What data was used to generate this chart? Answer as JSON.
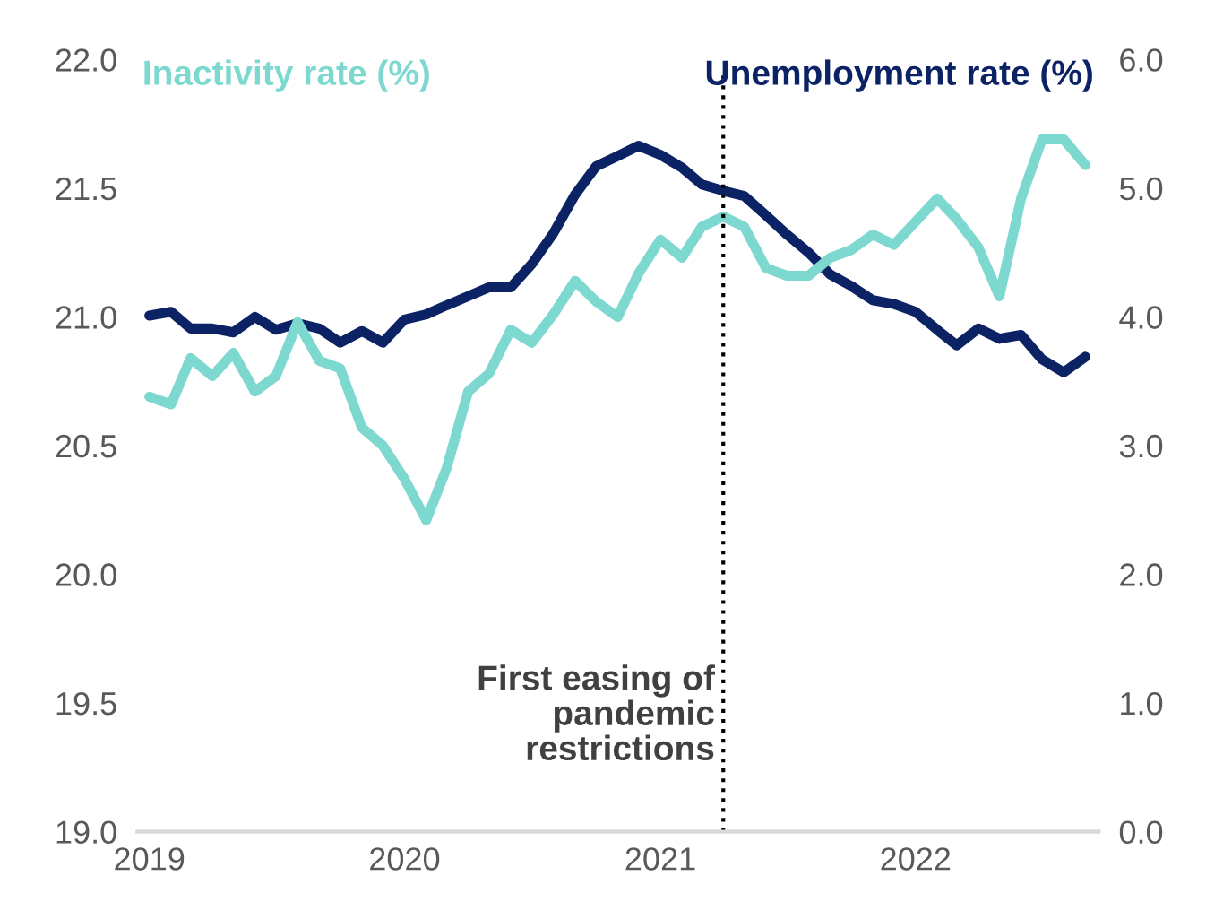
{
  "chart_data": {
    "type": "line",
    "x": [
      "2019-01",
      "2019-02",
      "2019-03",
      "2019-04",
      "2019-05",
      "2019-06",
      "2019-07",
      "2019-08",
      "2019-09",
      "2019-10",
      "2019-11",
      "2019-12",
      "2020-01",
      "2020-02",
      "2020-03",
      "2020-04",
      "2020-05",
      "2020-06",
      "2020-07",
      "2020-08",
      "2020-09",
      "2020-10",
      "2020-11",
      "2020-12",
      "2021-01",
      "2021-02",
      "2021-03",
      "2021-04",
      "2021-05",
      "2021-06",
      "2021-07",
      "2021-08",
      "2021-09",
      "2021-10",
      "2021-11",
      "2021-12",
      "2022-01",
      "2022-02",
      "2022-03",
      "2022-04",
      "2022-05",
      "2022-06",
      "2022-07",
      "2022-08",
      "2022-09"
    ],
    "series": [
      {
        "name": "Inactivity rate (%)",
        "color": "#7dd8cf",
        "values": [
          20.69,
          20.66,
          20.84,
          20.77,
          20.86,
          20.71,
          20.77,
          20.98,
          20.83,
          20.8,
          20.57,
          20.5,
          20.37,
          20.21,
          20.41,
          20.71,
          20.78,
          20.95,
          20.9,
          21.01,
          21.14,
          21.06,
          21.0,
          21.17,
          21.3,
          21.23,
          21.35,
          21.39,
          21.35,
          21.19,
          21.16,
          21.16,
          21.23,
          21.26,
          21.32,
          21.28,
          21.37,
          21.46,
          21.38,
          21.27,
          21.08,
          21.46,
          21.69,
          21.69,
          21.59
        ]
      },
      {
        "name": "Unemployment rate (%)",
        "color": "#0b2265",
        "axis": "y2",
        "values": [
          4.01,
          4.04,
          3.91,
          3.91,
          3.88,
          4.0,
          3.9,
          3.95,
          3.91,
          3.8,
          3.89,
          3.8,
          3.98,
          4.02,
          4.09,
          4.16,
          4.23,
          4.23,
          4.41,
          4.65,
          4.95,
          5.17,
          5.25,
          5.33,
          5.26,
          5.16,
          5.03,
          4.98,
          4.94,
          4.79,
          4.64,
          4.5,
          4.33,
          4.24,
          4.13,
          4.1,
          4.04,
          3.9,
          3.78,
          3.91,
          3.83,
          3.86,
          3.67,
          3.57,
          3.69
        ]
      }
    ],
    "xlim": [
      "2018-12-15",
      "2022-09-20"
    ],
    "xticks": [
      {
        "value": "2019-01",
        "label": "2019"
      },
      {
        "value": "2020-01",
        "label": "2020"
      },
      {
        "value": "2021-01",
        "label": "2021"
      },
      {
        "value": "2022-01",
        "label": "2022"
      }
    ],
    "ylim": [
      19,
      22
    ],
    "yticks": [
      {
        "value": 19,
        "label": "19.0"
      },
      {
        "value": 19.5,
        "label": "19.5"
      },
      {
        "value": 20,
        "label": "20.0"
      },
      {
        "value": 20.5,
        "label": "20.5"
      },
      {
        "value": 21,
        "label": "21.0"
      },
      {
        "value": 21.5,
        "label": "21.5"
      },
      {
        "value": 22,
        "label": "22.0"
      }
    ],
    "y2lim": [
      0,
      6
    ],
    "y2ticks": [
      {
        "value": 0,
        "label": "0.0"
      },
      {
        "value": 1,
        "label": "1.0"
      },
      {
        "value": 2,
        "label": "2.0"
      },
      {
        "value": 3,
        "label": "3.0"
      },
      {
        "value": 4,
        "label": "4.0"
      },
      {
        "value": 5,
        "label": "5.0"
      },
      {
        "value": 6,
        "label": "6.0"
      }
    ],
    "ref_lines": [
      {
        "axis": "x",
        "value": "2021-04",
        "label": "First easing of\npandemic\nrestrictions",
        "color": "#000000",
        "line_style": "dotted"
      }
    ],
    "grid": false,
    "legend": false,
    "marker": "none",
    "line_style": "solid"
  }
}
